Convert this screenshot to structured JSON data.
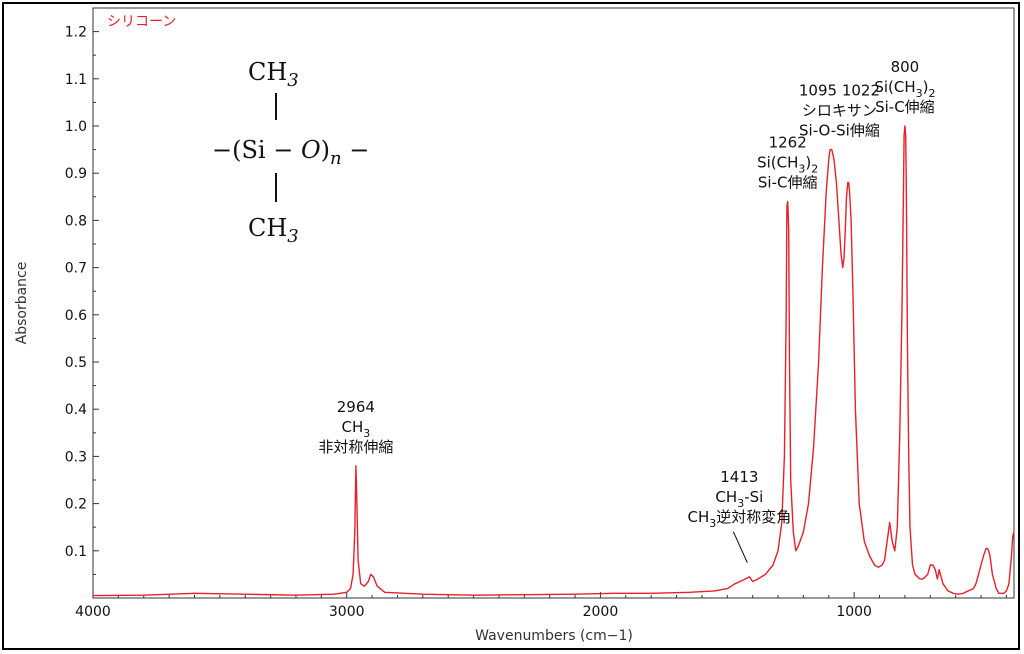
{
  "chart_data": {
    "type": "line",
    "title": "",
    "sample_label": "シリコーン",
    "xlabel": "Wavenumbers (cm−1)",
    "ylabel": "Absorbance",
    "x_reversed": true,
    "xlim": [
      4000,
      370
    ],
    "ylim": [
      0.0,
      1.25
    ],
    "x_ticks": [
      "4000",
      "3000",
      "2000",
      "1000"
    ],
    "x_tick_values": [
      4000,
      3000,
      2000,
      1000
    ],
    "y_ticks": [
      "0.1",
      "0.2",
      "0.3",
      "0.4",
      "0.5",
      "0.6",
      "0.7",
      "0.8",
      "0.9",
      "1.0",
      "1.1",
      "1.2"
    ],
    "y_tick_values": [
      0.1,
      0.2,
      0.3,
      0.4,
      0.5,
      0.6,
      0.7,
      0.8,
      0.9,
      1.0,
      1.1,
      1.2
    ],
    "line_color": "#e8202a",
    "series": [
      {
        "x": [
          4000,
          3800,
          3600,
          3400,
          3200,
          3050,
          3000,
          2985,
          2975,
          2968,
          2964,
          2960,
          2955,
          2945,
          2930,
          2915,
          2905,
          2895,
          2880,
          2850,
          2700,
          2500,
          2300,
          2100,
          1950,
          1800,
          1650,
          1550,
          1500,
          1470,
          1450,
          1430,
          1413,
          1400,
          1380,
          1350,
          1320,
          1300,
          1285,
          1275,
          1268,
          1265,
          1262,
          1258,
          1255,
          1250,
          1240,
          1230,
          1220,
          1200,
          1180,
          1160,
          1140,
          1125,
          1110,
          1100,
          1095,
          1088,
          1080,
          1070,
          1060,
          1052,
          1045,
          1040,
          1035,
          1030,
          1025,
          1022,
          1018,
          1012,
          1005,
          995,
          980,
          960,
          940,
          920,
          905,
          890,
          880,
          870,
          860,
          850,
          840,
          830,
          820,
          812,
          806,
          803,
          800,
          797,
          794,
          790,
          785,
          780,
          770,
          760,
          750,
          740,
          730,
          720,
          710,
          700,
          690,
          685,
          680,
          672,
          665,
          660,
          650,
          630,
          610,
          590,
          570,
          550,
          530,
          520,
          510,
          500,
          490,
          480,
          475,
          470,
          465,
          460,
          455,
          450,
          445,
          440,
          435,
          430,
          420,
          410,
          400,
          390,
          380,
          375,
          370
        ],
        "y": [
          0.005,
          0.006,
          0.01,
          0.008,
          0.006,
          0.008,
          0.012,
          0.02,
          0.05,
          0.14,
          0.28,
          0.2,
          0.08,
          0.03,
          0.025,
          0.035,
          0.05,
          0.045,
          0.025,
          0.012,
          0.008,
          0.006,
          0.007,
          0.008,
          0.01,
          0.01,
          0.012,
          0.015,
          0.02,
          0.03,
          0.035,
          0.04,
          0.045,
          0.035,
          0.04,
          0.05,
          0.07,
          0.1,
          0.16,
          0.3,
          0.6,
          0.83,
          0.84,
          0.78,
          0.5,
          0.25,
          0.14,
          0.1,
          0.11,
          0.14,
          0.2,
          0.32,
          0.5,
          0.7,
          0.86,
          0.93,
          0.95,
          0.95,
          0.93,
          0.88,
          0.8,
          0.73,
          0.7,
          0.72,
          0.78,
          0.85,
          0.88,
          0.88,
          0.86,
          0.8,
          0.65,
          0.4,
          0.2,
          0.12,
          0.09,
          0.07,
          0.065,
          0.07,
          0.08,
          0.12,
          0.16,
          0.12,
          0.1,
          0.15,
          0.35,
          0.6,
          0.85,
          0.98,
          1.0,
          0.98,
          0.85,
          0.55,
          0.3,
          0.15,
          0.07,
          0.05,
          0.045,
          0.04,
          0.04,
          0.045,
          0.05,
          0.07,
          0.07,
          0.065,
          0.06,
          0.04,
          0.06,
          0.05,
          0.03,
          0.015,
          0.01,
          0.008,
          0.01,
          0.015,
          0.02,
          0.03,
          0.05,
          0.07,
          0.09,
          0.105,
          0.105,
          0.1,
          0.09,
          0.07,
          0.05,
          0.04,
          0.03,
          0.02,
          0.015,
          0.01,
          0.01,
          0.01,
          0.015,
          0.03,
          0.09,
          0.13,
          0.14
        ]
      }
    ],
    "annotations": [
      {
        "name": "2964",
        "x": 2964,
        "y": 0.28,
        "lines": [
          {
            "t": "2964"
          },
          {
            "t": "CH",
            "sub": "3"
          },
          {
            "t": "非対称伸縮"
          }
        ]
      },
      {
        "name": "1413",
        "x": 1413,
        "y": 0.045,
        "lines": [
          {
            "t": "1413"
          },
          {
            "t": "CH",
            "sub": "3",
            "t2": "-Si"
          },
          {
            "t": "CH",
            "sub": "3",
            "t2": "逆対称変角"
          }
        ]
      },
      {
        "name": "1262",
        "x": 1262,
        "y": 0.84,
        "lines": [
          {
            "t": "1262"
          },
          {
            "t": "Si(CH",
            "sub": "3",
            "t2": ")",
            "sub2": "2"
          },
          {
            "t": "Si-C伸縮"
          }
        ]
      },
      {
        "name": "1095-1022",
        "x": 1058,
        "y": 0.95,
        "lines": [
          {
            "t": "1095 1022"
          },
          {
            "t": "シロキサン"
          },
          {
            "t": "Si-O-Si伸縮"
          }
        ]
      },
      {
        "name": "800",
        "x": 800,
        "y": 1.0,
        "lines": [
          {
            "t": "800"
          },
          {
            "t": "Si(CH",
            "sub": "3",
            "t2": ")",
            "sub2": "2"
          },
          {
            "t": "Si-C伸縮"
          }
        ]
      }
    ],
    "structure_formula": {
      "top": "CH",
      "top_sub": "3",
      "middle_left": "−(Si − ",
      "middle_o": "O",
      "middle_right": ")",
      "middle_sub": "n",
      "middle_tail": " −",
      "bottom": "CH",
      "bottom_sub": "3"
    },
    "grid": false,
    "legend": "none"
  }
}
